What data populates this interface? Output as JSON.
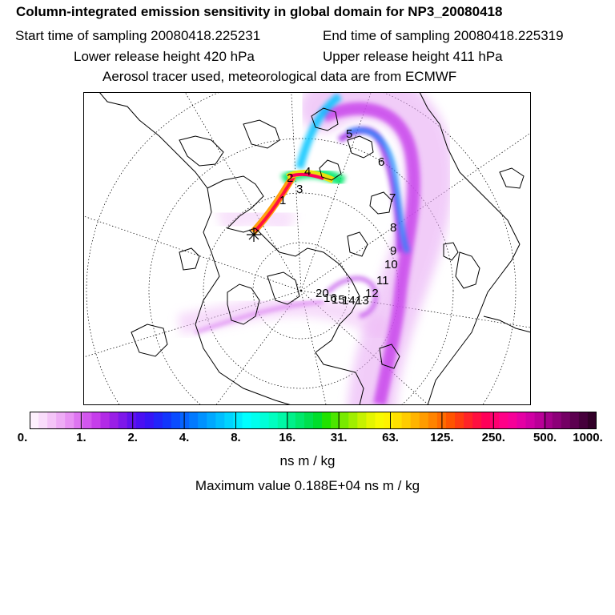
{
  "header": {
    "title": "Column-integrated emission sensitivity in global domain for NP3_20080418",
    "start_label": "Start time of sampling 20080418.225231",
    "end_label": "End time of sampling 20080418.225319",
    "lower_label": "Lower release height  420 hPa",
    "upper_label": "Upper release height  411 hPa",
    "tracer_line": "Aerosol tracer used, meteorological data are from ECMWF"
  },
  "map": {
    "projection": "polar-stereographic",
    "trajectory_labels": [
      "1",
      "2",
      "3",
      "4",
      "5",
      "6",
      "7",
      "8",
      "9",
      "10",
      "11",
      "12",
      "13",
      "14",
      "15",
      "16",
      "20"
    ]
  },
  "colorbar": {
    "tick_labels": [
      "0.",
      "1.",
      "2.",
      "4.",
      "8.",
      "16.",
      "31.",
      "63.",
      "125.",
      "250.",
      "500.",
      "1000."
    ],
    "colors": [
      "#fdf0fd",
      "#f9dcfb",
      "#f4c4f8",
      "#eeacf6",
      "#e892f4",
      "#de74f1",
      "#d256ee",
      "#c63deb",
      "#b22ae6",
      "#9a1fe6",
      "#7e18ea",
      "#6212ee",
      "#4a0ff2",
      "#3614f6",
      "#2124fa",
      "#1236fc",
      "#0a4cff",
      "#0664ff",
      "#027aff",
      "#0092ff",
      "#00a8ff",
      "#00beff",
      "#00d4ff",
      "#00ebff",
      "#00ffff",
      "#00ffee",
      "#00ffd8",
      "#00ffc0",
      "#00f8a6",
      "#00f08a",
      "#00e86c",
      "#00e04e",
      "#00de2c",
      "#20e200",
      "#4ce600",
      "#78ea00",
      "#a0ee00",
      "#c6f200",
      "#e4f600",
      "#f8fa00",
      "#fff200",
      "#ffe000",
      "#ffcc00",
      "#ffb400",
      "#ff9c00",
      "#ff8400",
      "#ff6c00",
      "#ff5400",
      "#ff3c10",
      "#ff2428",
      "#ff1040",
      "#ff0058",
      "#ff0070",
      "#ff0088",
      "#f60098",
      "#e400a4",
      "#d000a4",
      "#ba0098",
      "#a4008a",
      "#8c0078",
      "#740064",
      "#5c0050",
      "#46003c",
      "#320028"
    ],
    "units": "ns m / kg",
    "maximum_label": "Maximum value  0.188E+04 ns m / kg"
  }
}
